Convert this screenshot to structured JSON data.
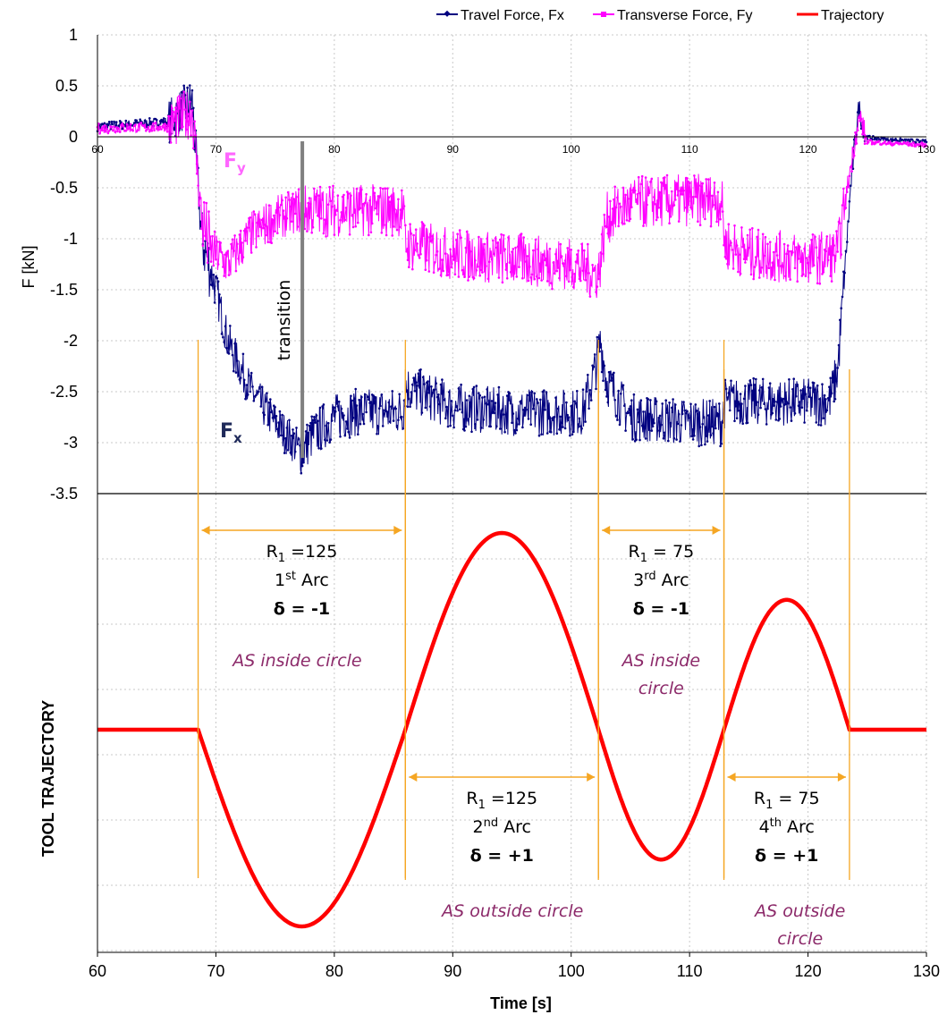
{
  "chart_data": [
    {
      "type": "line",
      "ylabel": "F [kN]",
      "ylim": [
        -3.5,
        1
      ],
      "yticks": [
        1,
        0.5,
        0,
        -0.5,
        -1,
        -1.5,
        -2,
        -2.5,
        -3,
        -3.5
      ],
      "xlim": [
        60,
        130
      ],
      "xticks": [
        60,
        70,
        80,
        90,
        100,
        110,
        120,
        130
      ],
      "grid": true,
      "legend": "top",
      "series": [
        {
          "name": "Travel Force, Fx",
          "color": "#000080",
          "points": [
            [
              60,
              0.1
            ],
            [
              66,
              0.15
            ],
            [
              68,
              0.35
            ],
            [
              68.8,
              -1.0
            ],
            [
              70,
              -1.5
            ],
            [
              71,
              -2.0
            ],
            [
              73,
              -2.5
            ],
            [
              75,
              -2.8
            ],
            [
              77.3,
              -3.1
            ],
            [
              78,
              -2.95
            ],
            [
              80,
              -2.75
            ],
            [
              82,
              -2.7
            ],
            [
              85.8,
              -2.7
            ],
            [
              86,
              -2.45
            ],
            [
              90,
              -2.65
            ],
            [
              95,
              -2.7
            ],
            [
              101,
              -2.7
            ],
            [
              102,
              -2.3
            ],
            [
              102.5,
              -2.0
            ],
            [
              103,
              -2.4
            ],
            [
              105,
              -2.75
            ],
            [
              110,
              -2.8
            ],
            [
              112.7,
              -2.8
            ],
            [
              113,
              -2.6
            ],
            [
              115,
              -2.6
            ],
            [
              121.8,
              -2.6
            ],
            [
              122.5,
              -2.3
            ],
            [
              123,
              -1.5
            ],
            [
              123.6,
              -0.5
            ],
            [
              124,
              0.0
            ],
            [
              124.3,
              0.3
            ],
            [
              124.8,
              0.0
            ],
            [
              126,
              -0.02
            ],
            [
              130,
              -0.05
            ]
          ]
        },
        {
          "name": "Transverse Force, Fy",
          "color": "#ff00ff",
          "points": [
            [
              60,
              0.08
            ],
            [
              66,
              0.1
            ],
            [
              68,
              0.25
            ],
            [
              68.8,
              -0.8
            ],
            [
              69.5,
              -1.1
            ],
            [
              71,
              -1.25
            ],
            [
              73,
              -0.95
            ],
            [
              75,
              -0.8
            ],
            [
              77,
              -0.72
            ],
            [
              80,
              -0.72
            ],
            [
              85.8,
              -0.72
            ],
            [
              86,
              -1.05
            ],
            [
              90,
              -1.15
            ],
            [
              95,
              -1.2
            ],
            [
              100,
              -1.25
            ],
            [
              102.3,
              -1.35
            ],
            [
              103,
              -0.8
            ],
            [
              105,
              -0.65
            ],
            [
              110,
              -0.62
            ],
            [
              112.7,
              -0.62
            ],
            [
              113,
              -1.05
            ],
            [
              115,
              -1.15
            ],
            [
              120,
              -1.2
            ],
            [
              122.5,
              -1.15
            ],
            [
              123.2,
              -0.6
            ],
            [
              124,
              0.0
            ],
            [
              124.4,
              0.2
            ],
            [
              125,
              -0.05
            ],
            [
              130,
              -0.08
            ]
          ]
        }
      ],
      "annotations": {
        "fy_label": "F",
        "fy_sub": "y",
        "fx_label": "F",
        "fx_sub": "x",
        "transition_label": "transition",
        "transition_x": 77.3
      }
    },
    {
      "type": "line",
      "ylabel": "TOOL TRAJECTORY",
      "xlabel": "Time [s]",
      "xlim": [
        60,
        130
      ],
      "xticks": [
        60,
        70,
        80,
        90,
        100,
        110,
        120,
        130
      ],
      "grid": true,
      "series": [
        {
          "name": "Trajectory",
          "color": "#ff0000",
          "segments": [
            {
              "x0": 60,
              "x1": 68.5,
              "shape": "flat",
              "amp": 0
            },
            {
              "x0": 68.5,
              "x1": 86,
              "shape": "half-sine",
              "amp": -1.0
            },
            {
              "x0": 86,
              "x1": 102.3,
              "shape": "sine",
              "amp": 1.0,
              "amp2": -0.66
            },
            {
              "x0": 102.3,
              "x1": 112.9,
              "shape": "half-sine",
              "amp": -0.66
            },
            {
              "x0": 112.9,
              "x1": 123.5,
              "shape": "half-sine",
              "amp": 0.66
            },
            {
              "x0": 123.5,
              "x1": 130,
              "shape": "flat",
              "amp": 0
            }
          ]
        }
      ],
      "arcs": [
        {
          "r_label": "R",
          "r_sub": "1",
          "r_value": " =125",
          "ord_num": "1",
          "ord_sup": "st",
          "ord_text": " Arc",
          "delta": "δ = -1",
          "as_lines": [
            "AS inside circle"
          ],
          "x0": 68.5,
          "x1": 86,
          "row": "top"
        },
        {
          "r_label": "R",
          "r_sub": "1",
          "r_value": " =125",
          "ord_num": "2",
          "ord_sup": "nd",
          "ord_text": " Arc",
          "delta": "δ = +1",
          "as_lines": [
            "AS outside circle"
          ],
          "x0": 86,
          "x1": 102.3,
          "row": "bottom"
        },
        {
          "r_label": "R",
          "r_sub": "1",
          "r_value": " = 75",
          "ord_num": "3",
          "ord_sup": "rd",
          "ord_text": " Arc",
          "delta": "δ = -1",
          "as_lines": [
            "AS inside",
            "circle"
          ],
          "x0": 102.3,
          "x1": 112.9,
          "row": "top"
        },
        {
          "r_label": "R",
          "r_sub": "1",
          "r_value": " = 75",
          "ord_num": "4",
          "ord_sup": "th",
          "ord_text": " Arc",
          "delta": "δ = +1",
          "as_lines": [
            "AS outside",
            "circle"
          ],
          "x0": 112.9,
          "x1": 123.5,
          "row": "bottom"
        }
      ]
    }
  ]
}
